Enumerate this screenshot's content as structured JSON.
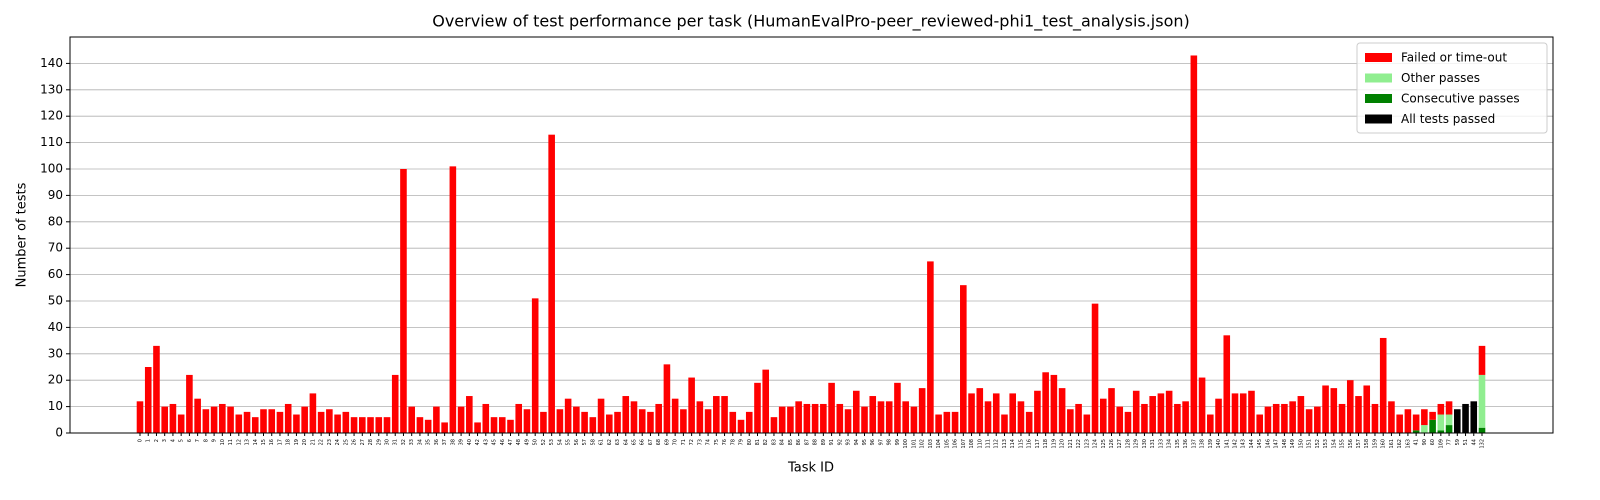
{
  "chart_data": {
    "type": "bar",
    "stacked": true,
    "title": "Overview of test performance per task (HumanEvalPro-peer_reviewed-phi1_test_analysis.json)",
    "x_label": "Task ID",
    "y_label": "Number of tests",
    "categories": [
      "0",
      "1",
      "2",
      "3",
      "4",
      "5",
      "6",
      "7",
      "8",
      "9",
      "10",
      "11",
      "12",
      "13",
      "14",
      "15",
      "16",
      "17",
      "18",
      "19",
      "20",
      "21",
      "22",
      "23",
      "24",
      "25",
      "26",
      "27",
      "28",
      "29",
      "30",
      "31",
      "32",
      "33",
      "34",
      "35",
      "36",
      "37",
      "38",
      "39",
      "40",
      "42",
      "43",
      "45",
      "46",
      "47",
      "48",
      "49",
      "50",
      "52",
      "53",
      "54",
      "55",
      "56",
      "57",
      "58",
      "61",
      "62",
      "63",
      "64",
      "65",
      "66",
      "67",
      "68",
      "69",
      "70",
      "71",
      "72",
      "73",
      "74",
      "75",
      "76",
      "78",
      "79",
      "80",
      "81",
      "82",
      "83",
      "84",
      "85",
      "86",
      "87",
      "88",
      "89",
      "91",
      "92",
      "93",
      "94",
      "95",
      "96",
      "97",
      "98",
      "99",
      "100",
      "101",
      "102",
      "103",
      "104",
      "105",
      "106",
      "107",
      "108",
      "110",
      "111",
      "112",
      "113",
      "114",
      "115",
      "116",
      "117",
      "118",
      "119",
      "120",
      "121",
      "122",
      "123",
      "124",
      "125",
      "126",
      "127",
      "128",
      "129",
      "130",
      "131",
      "133",
      "134",
      "135",
      "136",
      "137",
      "138",
      "139",
      "140",
      "141",
      "142",
      "143",
      "144",
      "145",
      "146",
      "147",
      "148",
      "149",
      "150",
      "151",
      "152",
      "153",
      "154",
      "155",
      "156",
      "157",
      "158",
      "159",
      "160",
      "161",
      "162",
      "163",
      "41",
      "90",
      "60",
      "109",
      "77",
      "59",
      "51",
      "44",
      "132"
    ],
    "series": [
      {
        "name": "Failed or time-out",
        "color": "#ff0000",
        "values": [
          12,
          25,
          33,
          10,
          11,
          7,
          22,
          13,
          9,
          10,
          11,
          10,
          7,
          8,
          6,
          9,
          9,
          8,
          11,
          7,
          10,
          15,
          8,
          9,
          7,
          8,
          6,
          6,
          6,
          6,
          6,
          22,
          100,
          10,
          6,
          5,
          10,
          4,
          101,
          10,
          14,
          4,
          11,
          6,
          6,
          5,
          11,
          9,
          51,
          8,
          113,
          9,
          13,
          10,
          8,
          6,
          13,
          7,
          8,
          14,
          12,
          9,
          8,
          11,
          26,
          13,
          9,
          21,
          12,
          9,
          14,
          14,
          8,
          5,
          8,
          19,
          24,
          6,
          10,
          10,
          12,
          11,
          11,
          11,
          19,
          11,
          9,
          16,
          10,
          14,
          12,
          12,
          19,
          12,
          10,
          17,
          65,
          7,
          8,
          8,
          56,
          15,
          17,
          12,
          15,
          7,
          15,
          12,
          8,
          16,
          23,
          22,
          17,
          9,
          11,
          7,
          49,
          13,
          17,
          10,
          8,
          16,
          11,
          14,
          15,
          16,
          11,
          12,
          143,
          21,
          7,
          13,
          37,
          15,
          15,
          16,
          7,
          10,
          11,
          11,
          12,
          14,
          9,
          10,
          18,
          17,
          11,
          20,
          14,
          18,
          11,
          36,
          12,
          7,
          9,
          6,
          6,
          3,
          4,
          5,
          0,
          0,
          0,
          11
        ]
      },
      {
        "name": "Other passes",
        "color": "#90ee90",
        "values": [
          0,
          0,
          0,
          0,
          0,
          0,
          0,
          0,
          0,
          0,
          0,
          0,
          0,
          0,
          0,
          0,
          0,
          0,
          0,
          0,
          0,
          0,
          0,
          0,
          0,
          0,
          0,
          0,
          0,
          0,
          0,
          0,
          0,
          0,
          0,
          0,
          0,
          0,
          0,
          0,
          0,
          0,
          0,
          0,
          0,
          0,
          0,
          0,
          0,
          0,
          0,
          0,
          0,
          0,
          0,
          0,
          0,
          0,
          0,
          0,
          0,
          0,
          0,
          0,
          0,
          0,
          0,
          0,
          0,
          0,
          0,
          0,
          0,
          0,
          0,
          0,
          0,
          0,
          0,
          0,
          0,
          0,
          0,
          0,
          0,
          0,
          0,
          0,
          0,
          0,
          0,
          0,
          0,
          0,
          0,
          0,
          0,
          0,
          0,
          0,
          0,
          0,
          0,
          0,
          0,
          0,
          0,
          0,
          0,
          0,
          0,
          0,
          0,
          0,
          0,
          0,
          0,
          0,
          0,
          0,
          0,
          0,
          0,
          0,
          0,
          0,
          0,
          0,
          0,
          0,
          0,
          0,
          0,
          0,
          0,
          0,
          0,
          0,
          0,
          0,
          0,
          0,
          0,
          0,
          0,
          0,
          0,
          0,
          0,
          0,
          0,
          0,
          0,
          0,
          0,
          0,
          3,
          0,
          6,
          4,
          0,
          0,
          0,
          20
        ]
      },
      {
        "name": "Consecutive passes",
        "color": "#008000",
        "values": [
          0,
          0,
          0,
          0,
          0,
          0,
          0,
          0,
          0,
          0,
          0,
          0,
          0,
          0,
          0,
          0,
          0,
          0,
          0,
          0,
          0,
          0,
          0,
          0,
          0,
          0,
          0,
          0,
          0,
          0,
          0,
          0,
          0,
          0,
          0,
          0,
          0,
          0,
          0,
          0,
          0,
          0,
          0,
          0,
          0,
          0,
          0,
          0,
          0,
          0,
          0,
          0,
          0,
          0,
          0,
          0,
          0,
          0,
          0,
          0,
          0,
          0,
          0,
          0,
          0,
          0,
          0,
          0,
          0,
          0,
          0,
          0,
          0,
          0,
          0,
          0,
          0,
          0,
          0,
          0,
          0,
          0,
          0,
          0,
          0,
          0,
          0,
          0,
          0,
          0,
          0,
          0,
          0,
          0,
          0,
          0,
          0,
          0,
          0,
          0,
          0,
          0,
          0,
          0,
          0,
          0,
          0,
          0,
          0,
          0,
          0,
          0,
          0,
          0,
          0,
          0,
          0,
          0,
          0,
          0,
          0,
          0,
          0,
          0,
          0,
          0,
          0,
          0,
          0,
          0,
          0,
          0,
          0,
          0,
          0,
          0,
          0,
          0,
          0,
          0,
          0,
          0,
          0,
          0,
          0,
          0,
          0,
          0,
          0,
          0,
          0,
          0,
          0,
          0,
          0,
          1,
          0,
          5,
          1,
          3,
          0,
          0,
          0,
          2
        ]
      },
      {
        "name": "All tests passed",
        "color": "#000000",
        "values": [
          0,
          0,
          0,
          0,
          0,
          0,
          0,
          0,
          0,
          0,
          0,
          0,
          0,
          0,
          0,
          0,
          0,
          0,
          0,
          0,
          0,
          0,
          0,
          0,
          0,
          0,
          0,
          0,
          0,
          0,
          0,
          0,
          0,
          0,
          0,
          0,
          0,
          0,
          0,
          0,
          0,
          0,
          0,
          0,
          0,
          0,
          0,
          0,
          0,
          0,
          0,
          0,
          0,
          0,
          0,
          0,
          0,
          0,
          0,
          0,
          0,
          0,
          0,
          0,
          0,
          0,
          0,
          0,
          0,
          0,
          0,
          0,
          0,
          0,
          0,
          0,
          0,
          0,
          0,
          0,
          0,
          0,
          0,
          0,
          0,
          0,
          0,
          0,
          0,
          0,
          0,
          0,
          0,
          0,
          0,
          0,
          0,
          0,
          0,
          0,
          0,
          0,
          0,
          0,
          0,
          0,
          0,
          0,
          0,
          0,
          0,
          0,
          0,
          0,
          0,
          0,
          0,
          0,
          0,
          0,
          0,
          0,
          0,
          0,
          0,
          0,
          0,
          0,
          0,
          0,
          0,
          0,
          0,
          0,
          0,
          0,
          0,
          0,
          0,
          0,
          0,
          0,
          0,
          0,
          0,
          0,
          0,
          0,
          0,
          0,
          0,
          0,
          0,
          0,
          0,
          0,
          0,
          0,
          0,
          0,
          9,
          11,
          12,
          0
        ]
      }
    ],
    "ylim": [
      0,
      150
    ],
    "yticks": [
      0,
      10,
      20,
      30,
      40,
      50,
      60,
      70,
      80,
      90,
      100,
      110,
      120,
      130,
      140
    ],
    "grid": true,
    "legend": "upper right"
  }
}
